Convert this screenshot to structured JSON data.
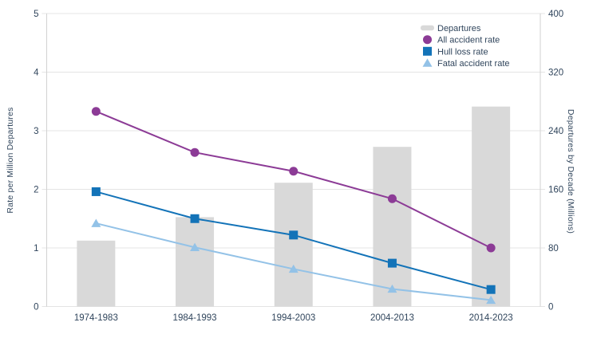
{
  "chart_data": {
    "type": "bar+line combo",
    "title": "",
    "categories": [
      "1974-1983",
      "1984-1993",
      "1994-2003",
      "2004-2013",
      "2014-2023"
    ],
    "bar_series": {
      "name": "Departures",
      "axis": "right",
      "values": [
        90,
        122,
        169,
        218,
        273
      ],
      "color": "#d9d9d9"
    },
    "line_series": [
      {
        "name": "All accident rate",
        "marker": "circle",
        "values": [
          3.33,
          2.63,
          2.31,
          1.84,
          1.0
        ],
        "color": "#8c3b96"
      },
      {
        "name": "Hull loss rate",
        "marker": "square",
        "values": [
          1.96,
          1.5,
          1.22,
          0.74,
          0.29
        ],
        "color": "#1373b8"
      },
      {
        "name": "Fatal accident rate",
        "marker": "triangle",
        "values": [
          1.42,
          1.01,
          0.64,
          0.3,
          0.11
        ],
        "color": "#93c2e7"
      }
    ],
    "left_axis": {
      "label": "Rate per Million Departures",
      "range": [
        0,
        5
      ],
      "ticks": [
        0,
        1,
        2,
        3,
        4,
        5
      ]
    },
    "right_axis": {
      "label": "Departures by Decade (Millions)",
      "range": [
        0,
        400
      ],
      "ticks": [
        0,
        80,
        160,
        240,
        320,
        400
      ]
    },
    "legend": {
      "position": "top-right",
      "entries": [
        "Departures",
        "All accident rate",
        "Hull loss rate",
        "Fatal accident rate"
      ]
    },
    "grid": true,
    "colors": {
      "text": "#30455c",
      "gridline": "#e4e4e4",
      "axis_line": "#d2d2d2"
    }
  }
}
